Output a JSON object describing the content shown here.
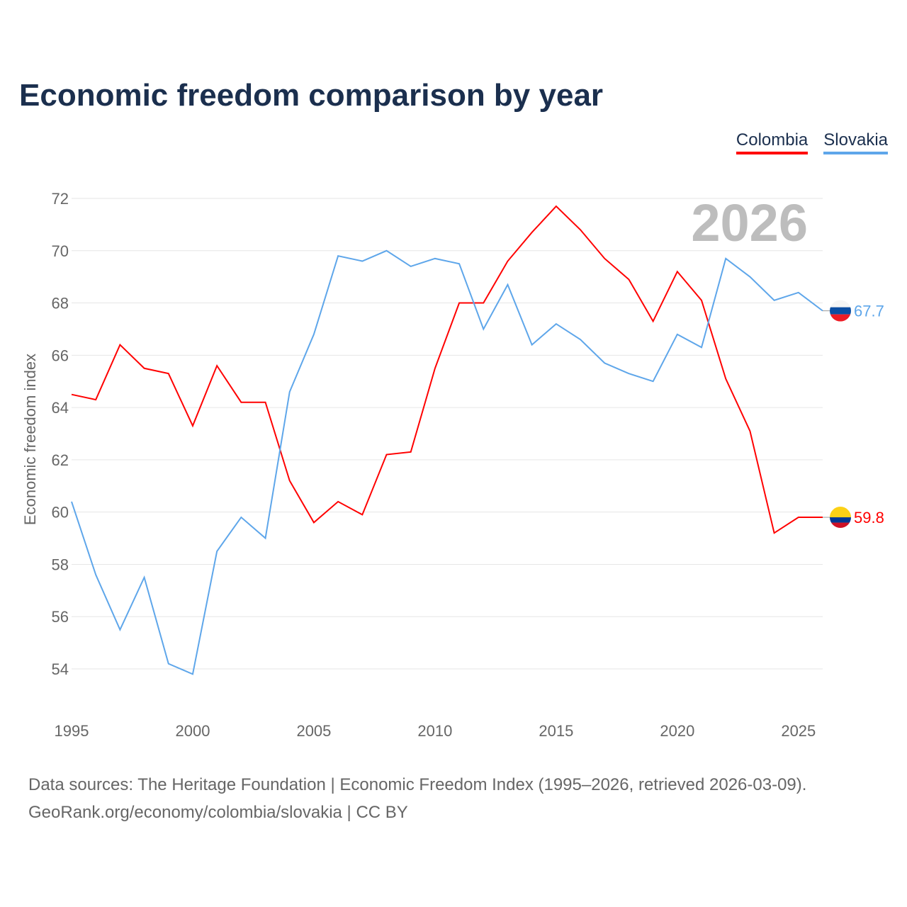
{
  "chart_data": {
    "type": "line",
    "title": "Economic freedom comparison by year",
    "ylabel": "Economic freedom index",
    "xlabel": "",
    "ylim": [
      52.5,
      72.5
    ],
    "xlim": [
      1995,
      2026
    ],
    "yticks": [
      54,
      56,
      58,
      60,
      62,
      64,
      66,
      68,
      70,
      72
    ],
    "xticks": [
      1995,
      2000,
      2005,
      2010,
      2015,
      2020,
      2025
    ],
    "grid": true,
    "legend_position": "top-right",
    "watermark_year": "2026",
    "x": [
      1995,
      1996,
      1997,
      1998,
      1999,
      2000,
      2001,
      2002,
      2003,
      2004,
      2005,
      2006,
      2007,
      2008,
      2009,
      2010,
      2011,
      2012,
      2013,
      2014,
      2015,
      2016,
      2017,
      2018,
      2019,
      2020,
      2021,
      2022,
      2023,
      2024,
      2025,
      2026
    ],
    "series": [
      {
        "name": "Colombia",
        "color": "#ff0000",
        "end_label": "59.8",
        "values": [
          64.5,
          64.3,
          66.4,
          65.5,
          65.3,
          63.3,
          65.6,
          64.2,
          64.2,
          61.2,
          59.6,
          60.4,
          59.9,
          62.2,
          62.3,
          65.5,
          68.0,
          68.0,
          69.6,
          70.7,
          71.7,
          70.8,
          69.7,
          68.9,
          67.3,
          69.2,
          68.1,
          65.1,
          63.1,
          59.2,
          59.8,
          59.8
        ]
      },
      {
        "name": "Slovakia",
        "color": "#5ea6ea",
        "end_label": "67.7",
        "values": [
          60.4,
          57.6,
          55.5,
          57.5,
          54.2,
          53.8,
          58.5,
          59.8,
          59.0,
          64.6,
          66.8,
          69.8,
          69.6,
          70.0,
          69.4,
          69.7,
          69.5,
          67.0,
          68.7,
          66.4,
          67.2,
          66.6,
          65.7,
          65.3,
          65.0,
          66.8,
          66.3,
          69.7,
          69.0,
          68.1,
          68.4,
          67.7
        ]
      }
    ]
  },
  "footer": {
    "line1": "Data sources: The Heritage Foundation | Economic Freedom Index (1995–2026, retrieved 2026-03-09).",
    "line2": "GeoRank.org/economy/colombia/slovakia | CC BY"
  }
}
